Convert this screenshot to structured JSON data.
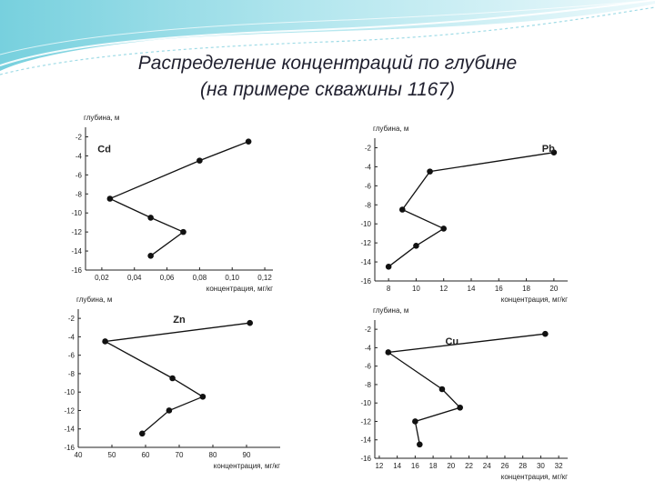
{
  "slide": {
    "title_line1": "Распределение концентраций по глубине",
    "title_line2": "(на примере скважины 1167)"
  },
  "chart_data": [
    {
      "type": "line",
      "element": "Cd",
      "ylabel": "глубина, м",
      "xlabel": "концентрация, мг/кг",
      "x": [
        0.11,
        0.08,
        0.025,
        0.05,
        0.07,
        0.05
      ],
      "y": [
        -2.5,
        -4.5,
        -8.5,
        -10.5,
        -12,
        -14.5
      ],
      "xlim": [
        0.01,
        0.125
      ],
      "ylim": [
        -16,
        -1
      ],
      "xticks": [
        "0,02",
        "0,04",
        "0,06",
        "0,08",
        "0,10",
        "0,12"
      ],
      "yticks": [
        "-2",
        "-4",
        "-6",
        "-8",
        "-10",
        "-12",
        "-14",
        "-16"
      ]
    },
    {
      "type": "line",
      "element": "Pb",
      "ylabel": "глубина, м",
      "xlabel": "концентрация, мг/кг",
      "x": [
        20,
        11,
        9,
        12,
        10,
        8
      ],
      "y": [
        -2.5,
        -4.5,
        -8.5,
        -10.5,
        -12.3,
        -14.5
      ],
      "xlim": [
        7,
        21
      ],
      "ylim": [
        -16,
        -1
      ],
      "xticks": [
        "8",
        "10",
        "12",
        "14",
        "16",
        "18",
        "20"
      ],
      "yticks": [
        "-2",
        "-4",
        "-6",
        "-8",
        "-10",
        "-12",
        "-14",
        "-16"
      ]
    },
    {
      "type": "line",
      "element": "Zn",
      "ylabel": "глубина, м",
      "xlabel": "концентрация, мг/кг",
      "x": [
        91,
        48,
        68,
        77,
        67,
        59
      ],
      "y": [
        -2.5,
        -4.5,
        -8.5,
        -10.5,
        -12,
        -14.5
      ],
      "xlim": [
        40,
        100
      ],
      "ylim": [
        -16,
        -1
      ],
      "xticks": [
        "40",
        "50",
        "60",
        "70",
        "80",
        "90"
      ],
      "yticks": [
        "-2",
        "-4",
        "-6",
        "-8",
        "-10",
        "-12",
        "-14",
        "-16"
      ]
    },
    {
      "type": "line",
      "element": "Cu",
      "ylabel": "глубина, м",
      "xlabel": "концентрация, мг/кг",
      "x": [
        30.5,
        13,
        19,
        21,
        16,
        16.5
      ],
      "y": [
        -2.5,
        -4.5,
        -8.5,
        -10.5,
        -12,
        -14.5
      ],
      "xlim": [
        11.5,
        33
      ],
      "ylim": [
        -16,
        -1
      ],
      "xticks": [
        "12",
        "14",
        "16",
        "18",
        "20",
        "22",
        "24",
        "26",
        "28",
        "30",
        "32"
      ],
      "yticks": [
        "-2",
        "-4",
        "-6",
        "-8",
        "-10",
        "-12",
        "-14",
        "-16"
      ]
    }
  ]
}
